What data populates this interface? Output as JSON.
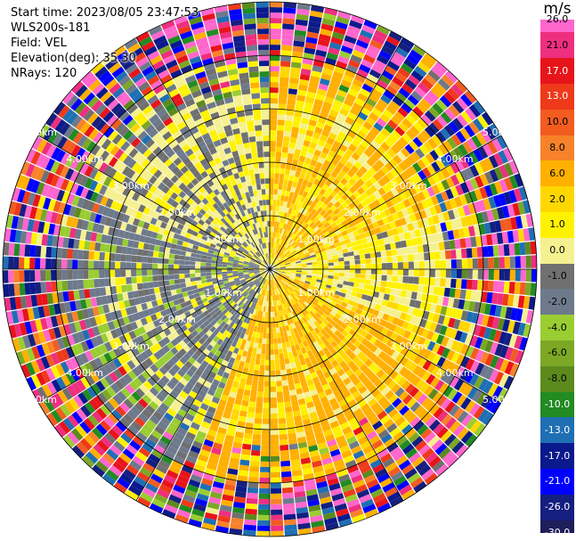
{
  "meta": {
    "start_time": "Start time: 2023/08/05 23:47:53",
    "instrument": "WLS200s-181",
    "field": "Field: VEL",
    "elevation": "Elevation(deg): 35.30",
    "nrays": "NRays: 120"
  },
  "chart_data": {
    "type": "heatmap",
    "projection": "polar PPI",
    "field": "VEL",
    "units": "m/s",
    "n_rays": 120,
    "elevation_deg": 35.3,
    "range_ring_labels": [
      "1.00km",
      "2.00km",
      "3.00km",
      "4.00km",
      "5.00km"
    ],
    "range_rings_km": [
      1,
      2,
      3,
      4,
      5
    ],
    "max_range_km": 5.0,
    "gate_spacing_km": 0.1,
    "colorbar": {
      "unit": "m/s",
      "ticks": [
        "26.0",
        "21.0",
        "17.0",
        "13.0",
        "10.0",
        "8.0",
        "6.0",
        "2.0",
        "1.0",
        "0.0",
        "-1.0",
        "-2.0",
        "-4.0",
        "-6.0",
        "-8.0",
        "-10.0",
        "-13.0",
        "-17.0",
        "-21.0",
        "-26.0",
        "-30.0"
      ],
      "colors": [
        "#ff66cc",
        "#ee2f7f",
        "#e8141b",
        "#ee3a1a",
        "#f25c1f",
        "#f7822a",
        "#ffb000",
        "#ffd700",
        "#fff200",
        "#f5f090",
        "#707070",
        "#6e7a8c",
        "#9acd32",
        "#7ca826",
        "#5c8a1d",
        "#228b22",
        "#1f6fb4",
        "#0a1a8c",
        "#0000ff",
        "#151f80",
        "#1e1e5a"
      ],
      "color_names": [
        "pink",
        "magenta",
        "red",
        "red-orange",
        "orange-red",
        "orange",
        "amber",
        "gold",
        "yellow",
        "light-yellow",
        "gray",
        "slate",
        "yellow-green",
        "olive-green",
        "dark-olive",
        "green",
        "teal-blue",
        "navy",
        "blue",
        "dark-blue",
        "midnight"
      ]
    },
    "pattern": {
      "description_values": "positive (yellow/orange) on east-north-east and south half, negative (green) on west and south-west; noisy outer ring with multi-colour speckle",
      "sectors": [
        {
          "azimuth_deg": [
            0,
            70
          ],
          "range_km": [
            0.2,
            4.0
          ],
          "mean_ms": 2.0
        },
        {
          "azimuth_deg": [
            70,
            110
          ],
          "range_km": [
            0.2,
            4.0
          ],
          "mean_ms": 0.0
        },
        {
          "azimuth_deg": [
            110,
            200
          ],
          "range_km": [
            0.2,
            4.0
          ],
          "mean_ms": 2.5
        },
        {
          "azimuth_deg": [
            200,
            290
          ],
          "range_km": [
            0.2,
            4.0
          ],
          "mean_ms": -3.0
        },
        {
          "azimuth_deg": [
            290,
            360
          ],
          "range_km": [
            0.2,
            4.0
          ],
          "mean_ms": -1.0
        }
      ]
    }
  }
}
